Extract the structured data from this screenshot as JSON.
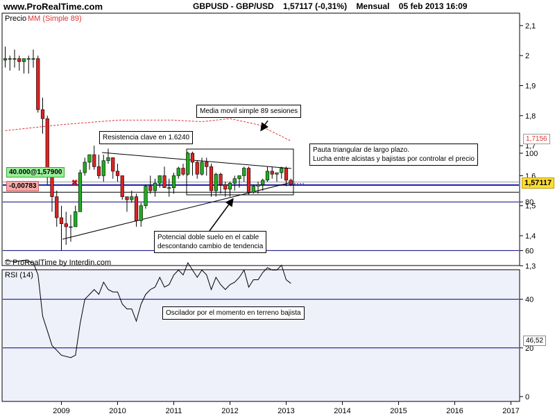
{
  "header": {
    "site": "www.ProRealTime.com",
    "instrument": "GBPUSD - GBP/USD",
    "last_change": "1,57117 (-0,31%)",
    "period": "Mensual",
    "datetime": "05 feb 2013 16:09"
  },
  "legend": {
    "precio": "Precio",
    "mm": "MM (Simple 89)"
  },
  "copyright": "© ProRealTime by Interdin.com",
  "rsi_label": "RSI (14)",
  "colors": {
    "up": "#22aa22",
    "down": "#dd2222",
    "ma": "#dd3333",
    "rsi": "#000000",
    "last": "#1a1aaa",
    "grid": "#000080",
    "panel_bg": "#eef0fa"
  },
  "annotations": {
    "resistance": "Resistencia clave en 1.6240",
    "ma_note": "Media movil simple 89 sesiones",
    "triangle_1": "Pauta triangular de largo plazo.",
    "triangle_2": "Lucha entre alcistas y bajistas por controlar el precio",
    "double_bottom_1": "Potencial doble suelo en el cable",
    "double_bottom_2": "descontando cambio de tendencia",
    "rsi_note": "Oscilador por el momento en terreno bajista"
  },
  "order_tag": "40.000@1,57900",
  "order_pl": "-0,00783",
  "ma_value_tag": "1,7156",
  "price_tag": "1,57117",
  "rsi_tag": "46,52",
  "chart_data": [
    {
      "type": "candlestick",
      "title": "GBPUSD - GBP/USD",
      "xlabel": "",
      "ylabel": "",
      "x_ticks": [
        "2009",
        "2010",
        "2011",
        "2012",
        "2013",
        "2014",
        "2015",
        "2016",
        "2017"
      ],
      "y_ticks": [
        "1,3",
        "1,4",
        "1,5",
        "1,6",
        "1,7",
        "1,8",
        "1,9",
        "2",
        "2,1"
      ],
      "ylim": [
        1.3,
        2.12
      ],
      "grid": false,
      "last_price": 1.57117,
      "order_level": 1.579,
      "support_level": 1.545,
      "resistance_level": 1.624,
      "candles": [
        {
          "date": "2008-01",
          "open": 1.985,
          "high": 2.03,
          "low": 1.96,
          "close": 1.99
        },
        {
          "date": "2008-02",
          "open": 1.99,
          "high": 2.0,
          "low": 1.95,
          "close": 1.99
        },
        {
          "date": "2008-03",
          "open": 1.99,
          "high": 2.02,
          "low": 1.96,
          "close": 1.99
        },
        {
          "date": "2008-04",
          "open": 1.99,
          "high": 2.0,
          "low": 1.95,
          "close": 1.98
        },
        {
          "date": "2008-05",
          "open": 1.98,
          "high": 1.99,
          "low": 1.94,
          "close": 1.99
        },
        {
          "date": "2008-06",
          "open": 1.99,
          "high": 2.0,
          "low": 1.94,
          "close": 1.99
        },
        {
          "date": "2008-07",
          "open": 1.99,
          "high": 2.02,
          "low": 1.96,
          "close": 1.99
        },
        {
          "date": "2008-08",
          "open": 1.99,
          "high": 2.0,
          "low": 1.81,
          "close": 1.82
        },
        {
          "date": "2008-09",
          "open": 1.82,
          "high": 1.86,
          "low": 1.74,
          "close": 1.79
        },
        {
          "date": "2008-10",
          "open": 1.79,
          "high": 1.8,
          "low": 1.57,
          "close": 1.61
        },
        {
          "date": "2008-11",
          "open": 1.61,
          "high": 1.62,
          "low": 1.48,
          "close": 1.53
        },
        {
          "date": "2008-12",
          "open": 1.53,
          "high": 1.55,
          "low": 1.43,
          "close": 1.46
        },
        {
          "date": "2009-01",
          "open": 1.46,
          "high": 1.5,
          "low": 1.35,
          "close": 1.44
        },
        {
          "date": "2009-02",
          "open": 1.44,
          "high": 1.48,
          "low": 1.37,
          "close": 1.43
        },
        {
          "date": "2009-03",
          "open": 1.43,
          "high": 1.47,
          "low": 1.38,
          "close": 1.43
        },
        {
          "date": "2009-04",
          "open": 1.43,
          "high": 1.5,
          "low": 1.43,
          "close": 1.48
        },
        {
          "date": "2009-05",
          "open": 1.48,
          "high": 1.62,
          "low": 1.48,
          "close": 1.61
        },
        {
          "date": "2009-06",
          "open": 1.61,
          "high": 1.66,
          "low": 1.6,
          "close": 1.645
        },
        {
          "date": "2009-07",
          "open": 1.645,
          "high": 1.67,
          "low": 1.62,
          "close": 1.67
        },
        {
          "date": "2009-08",
          "open": 1.67,
          "high": 1.7,
          "low": 1.62,
          "close": 1.63
        },
        {
          "date": "2009-09",
          "open": 1.63,
          "high": 1.67,
          "low": 1.59,
          "close": 1.6
        },
        {
          "date": "2009-10",
          "open": 1.6,
          "high": 1.67,
          "low": 1.58,
          "close": 1.65
        },
        {
          "date": "2009-11",
          "open": 1.65,
          "high": 1.69,
          "low": 1.64,
          "close": 1.66
        },
        {
          "date": "2009-12",
          "open": 1.66,
          "high": 1.66,
          "low": 1.59,
          "close": 1.615
        },
        {
          "date": "2010-01",
          "open": 1.615,
          "high": 1.64,
          "low": 1.58,
          "close": 1.6
        },
        {
          "date": "2010-02",
          "open": 1.6,
          "high": 1.6,
          "low": 1.52,
          "close": 1.53
        },
        {
          "date": "2010-03",
          "open": 1.53,
          "high": 1.53,
          "low": 1.48,
          "close": 1.52
        },
        {
          "date": "2010-04",
          "open": 1.52,
          "high": 1.55,
          "low": 1.51,
          "close": 1.53
        },
        {
          "date": "2010-05",
          "open": 1.53,
          "high": 1.54,
          "low": 1.43,
          "close": 1.45
        },
        {
          "date": "2010-06",
          "open": 1.45,
          "high": 1.51,
          "low": 1.43,
          "close": 1.5
        },
        {
          "date": "2010-07",
          "open": 1.5,
          "high": 1.57,
          "low": 1.49,
          "close": 1.565
        },
        {
          "date": "2010-08",
          "open": 1.565,
          "high": 1.6,
          "low": 1.54,
          "close": 1.55
        },
        {
          "date": "2010-09",
          "open": 1.55,
          "high": 1.59,
          "low": 1.53,
          "close": 1.575
        },
        {
          "date": "2010-10",
          "open": 1.575,
          "high": 1.6,
          "low": 1.56,
          "close": 1.6
        },
        {
          "date": "2010-11",
          "open": 1.6,
          "high": 1.63,
          "low": 1.56,
          "close": 1.56
        },
        {
          "date": "2010-12",
          "open": 1.56,
          "high": 1.59,
          "low": 1.53,
          "close": 1.56
        },
        {
          "date": "2011-01",
          "open": 1.56,
          "high": 1.61,
          "low": 1.54,
          "close": 1.6
        },
        {
          "date": "2011-02",
          "open": 1.6,
          "high": 1.63,
          "low": 1.59,
          "close": 1.625
        },
        {
          "date": "2011-03",
          "open": 1.625,
          "high": 1.64,
          "low": 1.6,
          "close": 1.605
        },
        {
          "date": "2011-04",
          "open": 1.605,
          "high": 1.68,
          "low": 1.6,
          "close": 1.675
        },
        {
          "date": "2011-05",
          "open": 1.675,
          "high": 1.68,
          "low": 1.6,
          "close": 1.645
        },
        {
          "date": "2011-06",
          "open": 1.645,
          "high": 1.65,
          "low": 1.59,
          "close": 1.605
        },
        {
          "date": "2011-07",
          "open": 1.605,
          "high": 1.66,
          "low": 1.6,
          "close": 1.645
        },
        {
          "date": "2011-08",
          "open": 1.645,
          "high": 1.66,
          "low": 1.6,
          "close": 1.63
        },
        {
          "date": "2011-09",
          "open": 1.63,
          "high": 1.64,
          "low": 1.53,
          "close": 1.55
        },
        {
          "date": "2011-10",
          "open": 1.55,
          "high": 1.61,
          "low": 1.53,
          "close": 1.605
        },
        {
          "date": "2011-11",
          "open": 1.605,
          "high": 1.61,
          "low": 1.54,
          "close": 1.57
        },
        {
          "date": "2011-12",
          "open": 1.57,
          "high": 1.58,
          "low": 1.53,
          "close": 1.555
        },
        {
          "date": "2012-01",
          "open": 1.555,
          "high": 1.58,
          "low": 1.53,
          "close": 1.575
        },
        {
          "date": "2012-02",
          "open": 1.575,
          "high": 1.6,
          "low": 1.55,
          "close": 1.59
        },
        {
          "date": "2012-03",
          "open": 1.59,
          "high": 1.6,
          "low": 1.56,
          "close": 1.6
        },
        {
          "date": "2012-04",
          "open": 1.6,
          "high": 1.63,
          "low": 1.58,
          "close": 1.625
        },
        {
          "date": "2012-05",
          "open": 1.625,
          "high": 1.63,
          "low": 1.535,
          "close": 1.545
        },
        {
          "date": "2012-06",
          "open": 1.545,
          "high": 1.57,
          "low": 1.54,
          "close": 1.565
        },
        {
          "date": "2012-07",
          "open": 1.565,
          "high": 1.58,
          "low": 1.54,
          "close": 1.57
        },
        {
          "date": "2012-08",
          "open": 1.57,
          "high": 1.59,
          "low": 1.55,
          "close": 1.585
        },
        {
          "date": "2012-09",
          "open": 1.585,
          "high": 1.63,
          "low": 1.58,
          "close": 1.615
        },
        {
          "date": "2012-10",
          "open": 1.615,
          "high": 1.63,
          "low": 1.59,
          "close": 1.605
        },
        {
          "date": "2012-11",
          "open": 1.605,
          "high": 1.61,
          "low": 1.58,
          "close": 1.61
        },
        {
          "date": "2012-12",
          "open": 1.61,
          "high": 1.63,
          "low": 1.59,
          "close": 1.625
        },
        {
          "date": "2013-01",
          "open": 1.625,
          "high": 1.63,
          "low": 1.565,
          "close": 1.585
        },
        {
          "date": "2013-02",
          "open": 1.585,
          "high": 1.59,
          "low": 1.565,
          "close": 1.571
        }
      ],
      "moving_average": {
        "name": "MM (Simple 89)",
        "points": [
          [
            "2008-01",
            1.75
          ],
          [
            "2009-01",
            1.77
          ],
          [
            "2010-01",
            1.785
          ],
          [
            "2011-01",
            1.785
          ],
          [
            "2011-07",
            1.78
          ],
          [
            "2012-01",
            1.79
          ],
          [
            "2012-07",
            1.77
          ],
          [
            "2013-02",
            1.7156
          ]
        ]
      }
    },
    {
      "type": "line",
      "title": "RSI (14)",
      "xlabel": "",
      "ylabel": "",
      "ylim": [
        0,
        100
      ],
      "y_ticks": [
        "0",
        "20",
        "40",
        "60",
        "80",
        "100"
      ],
      "grid": true,
      "series": [
        {
          "name": "RSI (14)",
          "points": [
            [
              "2008-01",
              56
            ],
            [
              "2008-03",
              55.5
            ],
            [
              "2008-05",
              56
            ],
            [
              "2008-07",
              55
            ],
            [
              "2008-08",
              50
            ],
            [
              "2008-09",
              33
            ],
            [
              "2008-10",
              27
            ],
            [
              "2008-11",
              21
            ],
            [
              "2008-12",
              19
            ],
            [
              "2009-01",
              17
            ],
            [
              "2009-03",
              16
            ],
            [
              "2009-04",
              17
            ],
            [
              "2009-05",
              30
            ],
            [
              "2009-06",
              40
            ],
            [
              "2009-08",
              44
            ],
            [
              "2009-09",
              42
            ],
            [
              "2009-10",
              47
            ],
            [
              "2009-11",
              44
            ],
            [
              "2009-12",
              43
            ],
            [
              "2010-01",
              43
            ],
            [
              "2010-02",
              38
            ],
            [
              "2010-03",
              36
            ],
            [
              "2010-04",
              36
            ],
            [
              "2010-05",
              31
            ],
            [
              "2010-06",
              38
            ],
            [
              "2010-07",
              42
            ],
            [
              "2010-08",
              44
            ],
            [
              "2010-09",
              45
            ],
            [
              "2010-10",
              49
            ],
            [
              "2010-11",
              45
            ],
            [
              "2010-12",
              46
            ],
            [
              "2011-01",
              50
            ],
            [
              "2011-02",
              52
            ],
            [
              "2011-03",
              50
            ],
            [
              "2011-04",
              55
            ],
            [
              "2011-05",
              52
            ],
            [
              "2011-06",
              49
            ],
            [
              "2011-07",
              52
            ],
            [
              "2011-08",
              50
            ],
            [
              "2011-09",
              44
            ],
            [
              "2011-10",
              49
            ],
            [
              "2011-11",
              46
            ],
            [
              "2011-12",
              44
            ],
            [
              "2012-01",
              46
            ],
            [
              "2012-02",
              47
            ],
            [
              "2012-03",
              49
            ],
            [
              "2012-04",
              52
            ],
            [
              "2012-05",
              45
            ],
            [
              "2012-06",
              48
            ],
            [
              "2012-07",
              48
            ],
            [
              "2012-08",
              51
            ],
            [
              "2012-09",
              53
            ],
            [
              "2012-10",
              52
            ],
            [
              "2012-11",
              52
            ],
            [
              "2012-12",
              54
            ],
            [
              "2013-01",
              48
            ],
            [
              "2013-02",
              46.52
            ]
          ]
        }
      ]
    }
  ]
}
